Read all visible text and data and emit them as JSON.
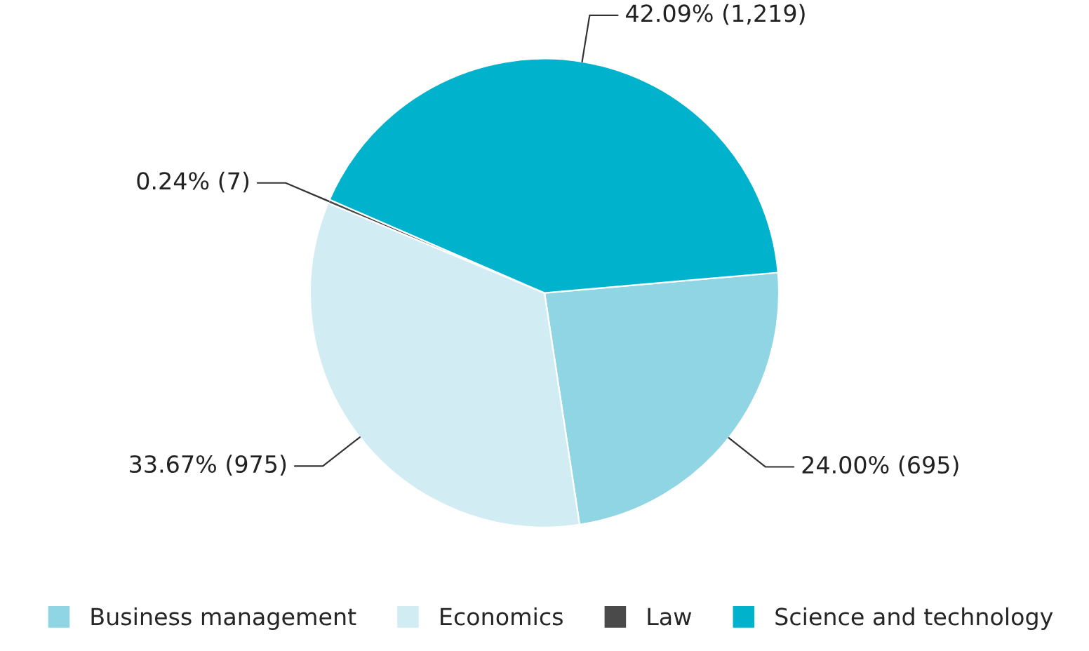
{
  "chart_data": {
    "type": "pie",
    "categories": [
      "Business management",
      "Economics",
      "Law",
      "Science and technology"
    ],
    "values": [
      695,
      975,
      7,
      1219
    ],
    "value_labels": [
      "24.00% (695)",
      "33.67% (975)",
      "0.24% (7)",
      "42.09% (1,219)"
    ],
    "colors": [
      "#8fd5e3",
      "#d2ecf3",
      "#4a4a4a",
      "#00b2cc"
    ],
    "legend": "bottom"
  }
}
